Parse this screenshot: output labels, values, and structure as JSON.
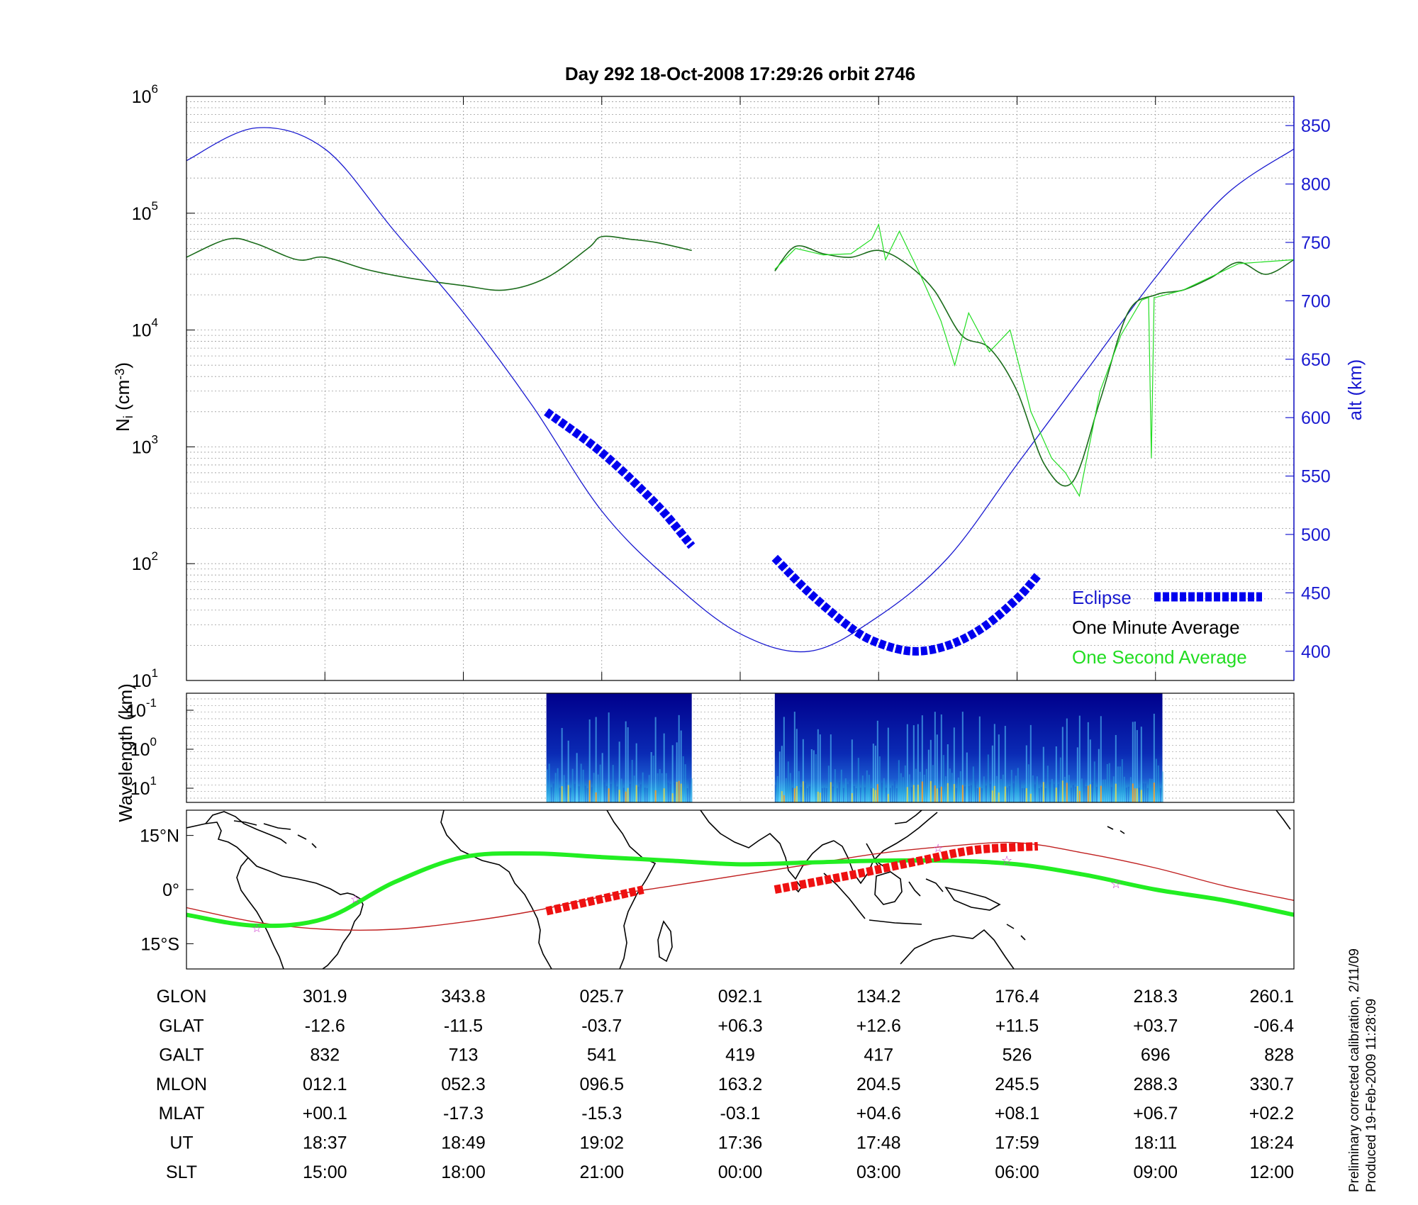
{
  "chart_data": [
    {
      "type": "line",
      "title": "Day 292  18-Oct-2008 17:29:26   orbit 2746",
      "ylabel_left": "N_i (cm^-3)",
      "ylabel_right": "alt (km)",
      "yscale_left": "log",
      "ylim_left": [
        10,
        1000000
      ],
      "yticks_left": [
        {
          "base": "10",
          "exp": "1"
        },
        {
          "base": "10",
          "exp": "2"
        },
        {
          "base": "10",
          "exp": "3"
        },
        {
          "base": "10",
          "exp": "4"
        },
        {
          "base": "10",
          "exp": "5"
        },
        {
          "base": "10",
          "exp": "6"
        }
      ],
      "ylim_right": [
        375,
        875
      ],
      "yticks_right": [
        400,
        450,
        500,
        550,
        600,
        650,
        700,
        750,
        800,
        850
      ],
      "x_index_range": [
        0,
        8
      ],
      "grid": true,
      "legend_position": "bottom-right",
      "series": [
        {
          "name": "Eclipse",
          "color": "#0000ee",
          "style": "thick-dashed"
        },
        {
          "name": "One Minute Average",
          "color": "#000000",
          "style": "line"
        },
        {
          "name": "One Second Average",
          "color": "#22dd22",
          "style": "line"
        }
      ],
      "altitude_curve": {
        "color": "#1a1ad0",
        "x": [
          0,
          0.5,
          1,
          1.5,
          2,
          2.5,
          3,
          3.5,
          4,
          4.5,
          5,
          5.5,
          6,
          6.5,
          7,
          7.5,
          8
        ],
        "alt_km": [
          820,
          848,
          830,
          760,
          690,
          610,
          520,
          460,
          415,
          400,
          430,
          480,
          560,
          640,
          720,
          790,
          830
        ]
      },
      "eclipse_segments": [
        {
          "x": [
            2.6,
            3.0,
            3.4,
            3.65
          ],
          "alt_km": [
            605,
            570,
            525,
            490
          ]
        },
        {
          "x": [
            4.25,
            4.5,
            4.8,
            5.0,
            5.25,
            5.5,
            5.75,
            6.0,
            6.15
          ],
          "alt_km": [
            480,
            450,
            420,
            407,
            400,
            405,
            420,
            445,
            465
          ]
        }
      ],
      "density_one_minute": {
        "color": "#1a6b1a",
        "segments": [
          {
            "x": [
              0,
              0.3,
              0.5,
              0.8,
              1.0,
              1.3,
              1.6,
              2.0,
              2.3,
              2.6,
              2.9,
              3.0,
              3.2,
              3.4,
              3.65
            ],
            "ni": [
              42000,
              60000,
              55000,
              40000,
              42000,
              33000,
              28000,
              24000,
              22000,
              28000,
              50000,
              63000,
              60000,
              56000,
              48000
            ]
          },
          {
            "x": [
              4.25,
              4.4,
              4.6,
              4.8,
              5.0,
              5.2,
              5.4,
              5.6,
              5.8,
              6.0,
              6.2,
              6.4,
              6.6,
              6.8,
              7.0,
              7.2,
              7.4,
              7.6,
              7.8,
              8.0
            ],
            "ni": [
              32000,
              52000,
              45000,
              42000,
              48000,
              37000,
              22000,
              9000,
              7000,
              3000,
              700,
              500,
              2500,
              14000,
              20000,
              22000,
              28000,
              38000,
              30000,
              40000
            ]
          }
        ]
      },
      "density_one_second": {
        "color": "#22dd22",
        "segments": [
          {
            "x": [
              4.25,
              4.4,
              4.6,
              4.8,
              4.95,
              5.0,
              5.05,
              5.15,
              5.3,
              5.45,
              5.55,
              5.65,
              5.8,
              5.95,
              6.1,
              6.25,
              6.35,
              6.45,
              6.6,
              6.75,
              6.9,
              6.95,
              6.97,
              6.99,
              7.0,
              7.2,
              7.6,
              8.0
            ],
            "ni": [
              33000,
              50000,
              44000,
              45000,
              60000,
              80000,
              40000,
              70000,
              30000,
              12000,
              5000,
              14000,
              6500,
              10000,
              2000,
              800,
              600,
              380,
              3000,
              9000,
              18000,
              19000,
              800,
              19000,
              19000,
              22000,
              37000,
              40000
            ]
          }
        ]
      }
    },
    {
      "type": "heatmap",
      "ylabel": "Wavelength (km)",
      "yscale": "log",
      "yticks": [
        {
          "base": "10",
          "exp": "-1"
        },
        {
          "base": "10",
          "exp": "0"
        },
        {
          "base": "10",
          "exp": "1"
        }
      ],
      "colorscale": [
        "#00008c",
        "#0a2ab4",
        "#1a5ad0",
        "#2aa0e0",
        "#5fd8ff",
        "#dcd34a",
        "#ff9a1a"
      ],
      "data_blocks_x": [
        [
          2.6,
          3.65
        ],
        [
          4.25,
          7.05
        ]
      ]
    },
    {
      "type": "map",
      "yticks": [
        "15°N",
        "0°",
        "15°S"
      ],
      "lat_range": [
        -22,
        22
      ],
      "trajectory_green": {
        "color": "#22ee22",
        "x": [
          0,
          0.5,
          1.0,
          1.5,
          2.0,
          2.5,
          3.0,
          3.5,
          4.0,
          4.5,
          5.0,
          5.5,
          6.0,
          6.5,
          7.0,
          7.5,
          8.0
        ],
        "lat": [
          -7,
          -10,
          -8,
          2,
          9,
          10,
          9,
          8,
          7,
          7.5,
          8,
          8,
          7,
          4,
          0,
          -3,
          -7
        ]
      },
      "magnetic_equator_red": {
        "color": "#c02020",
        "x": [
          0,
          0.5,
          1.0,
          1.5,
          2.0,
          2.5,
          3.0,
          3.5,
          4.0,
          4.5,
          5.0,
          5.5,
          6.0,
          6.5,
          7.0,
          7.5,
          8.0
        ],
        "lat": [
          -5,
          -9,
          -11,
          -11,
          -9,
          -6,
          -2,
          1,
          4,
          7,
          10,
          12,
          13,
          10,
          6,
          1,
          -3
        ]
      },
      "eclipse_segments": [
        {
          "x": [
            2.6,
            3.3
          ],
          "lat": [
            -6,
            0
          ]
        },
        {
          "x": [
            4.25,
            4.8,
            5.3,
            5.7,
            6.15
          ],
          "lat": [
            0,
            4,
            8,
            11,
            12
          ]
        }
      ]
    }
  ],
  "table": {
    "headers": [
      "GLON",
      "GLAT",
      "GALT",
      "MLON",
      "MLAT",
      "UT",
      "SLT"
    ],
    "columns": [
      [
        "301.9",
        "-12.6",
        "832",
        "012.1",
        "+00.1",
        "18:37",
        "15:00"
      ],
      [
        "343.8",
        "-11.5",
        "713",
        "052.3",
        "-17.3",
        "18:49",
        "18:00"
      ],
      [
        "025.7",
        "-03.7",
        "541",
        "096.5",
        "-15.3",
        "19:02",
        "21:00"
      ],
      [
        "092.1",
        "+06.3",
        "419",
        "163.2",
        "-03.1",
        "17:36",
        "00:00"
      ],
      [
        "134.2",
        "+12.6",
        "417",
        "204.5",
        "+04.6",
        "17:48",
        "03:00"
      ],
      [
        "176.4",
        "+11.5",
        "526",
        "245.5",
        "+08.1",
        "17:59",
        "06:00"
      ],
      [
        "218.3",
        "+03.7",
        "696",
        "288.3",
        "+06.7",
        "18:11",
        "09:00"
      ],
      [
        "260.1",
        "-06.4",
        "828",
        "330.7",
        "+02.2",
        "18:24",
        "12:00"
      ]
    ]
  },
  "footer": {
    "line1": "Preliminary corrected calibration, 2/11/09",
    "line2": "Produced 19-Feb-2009 11:28:09"
  }
}
